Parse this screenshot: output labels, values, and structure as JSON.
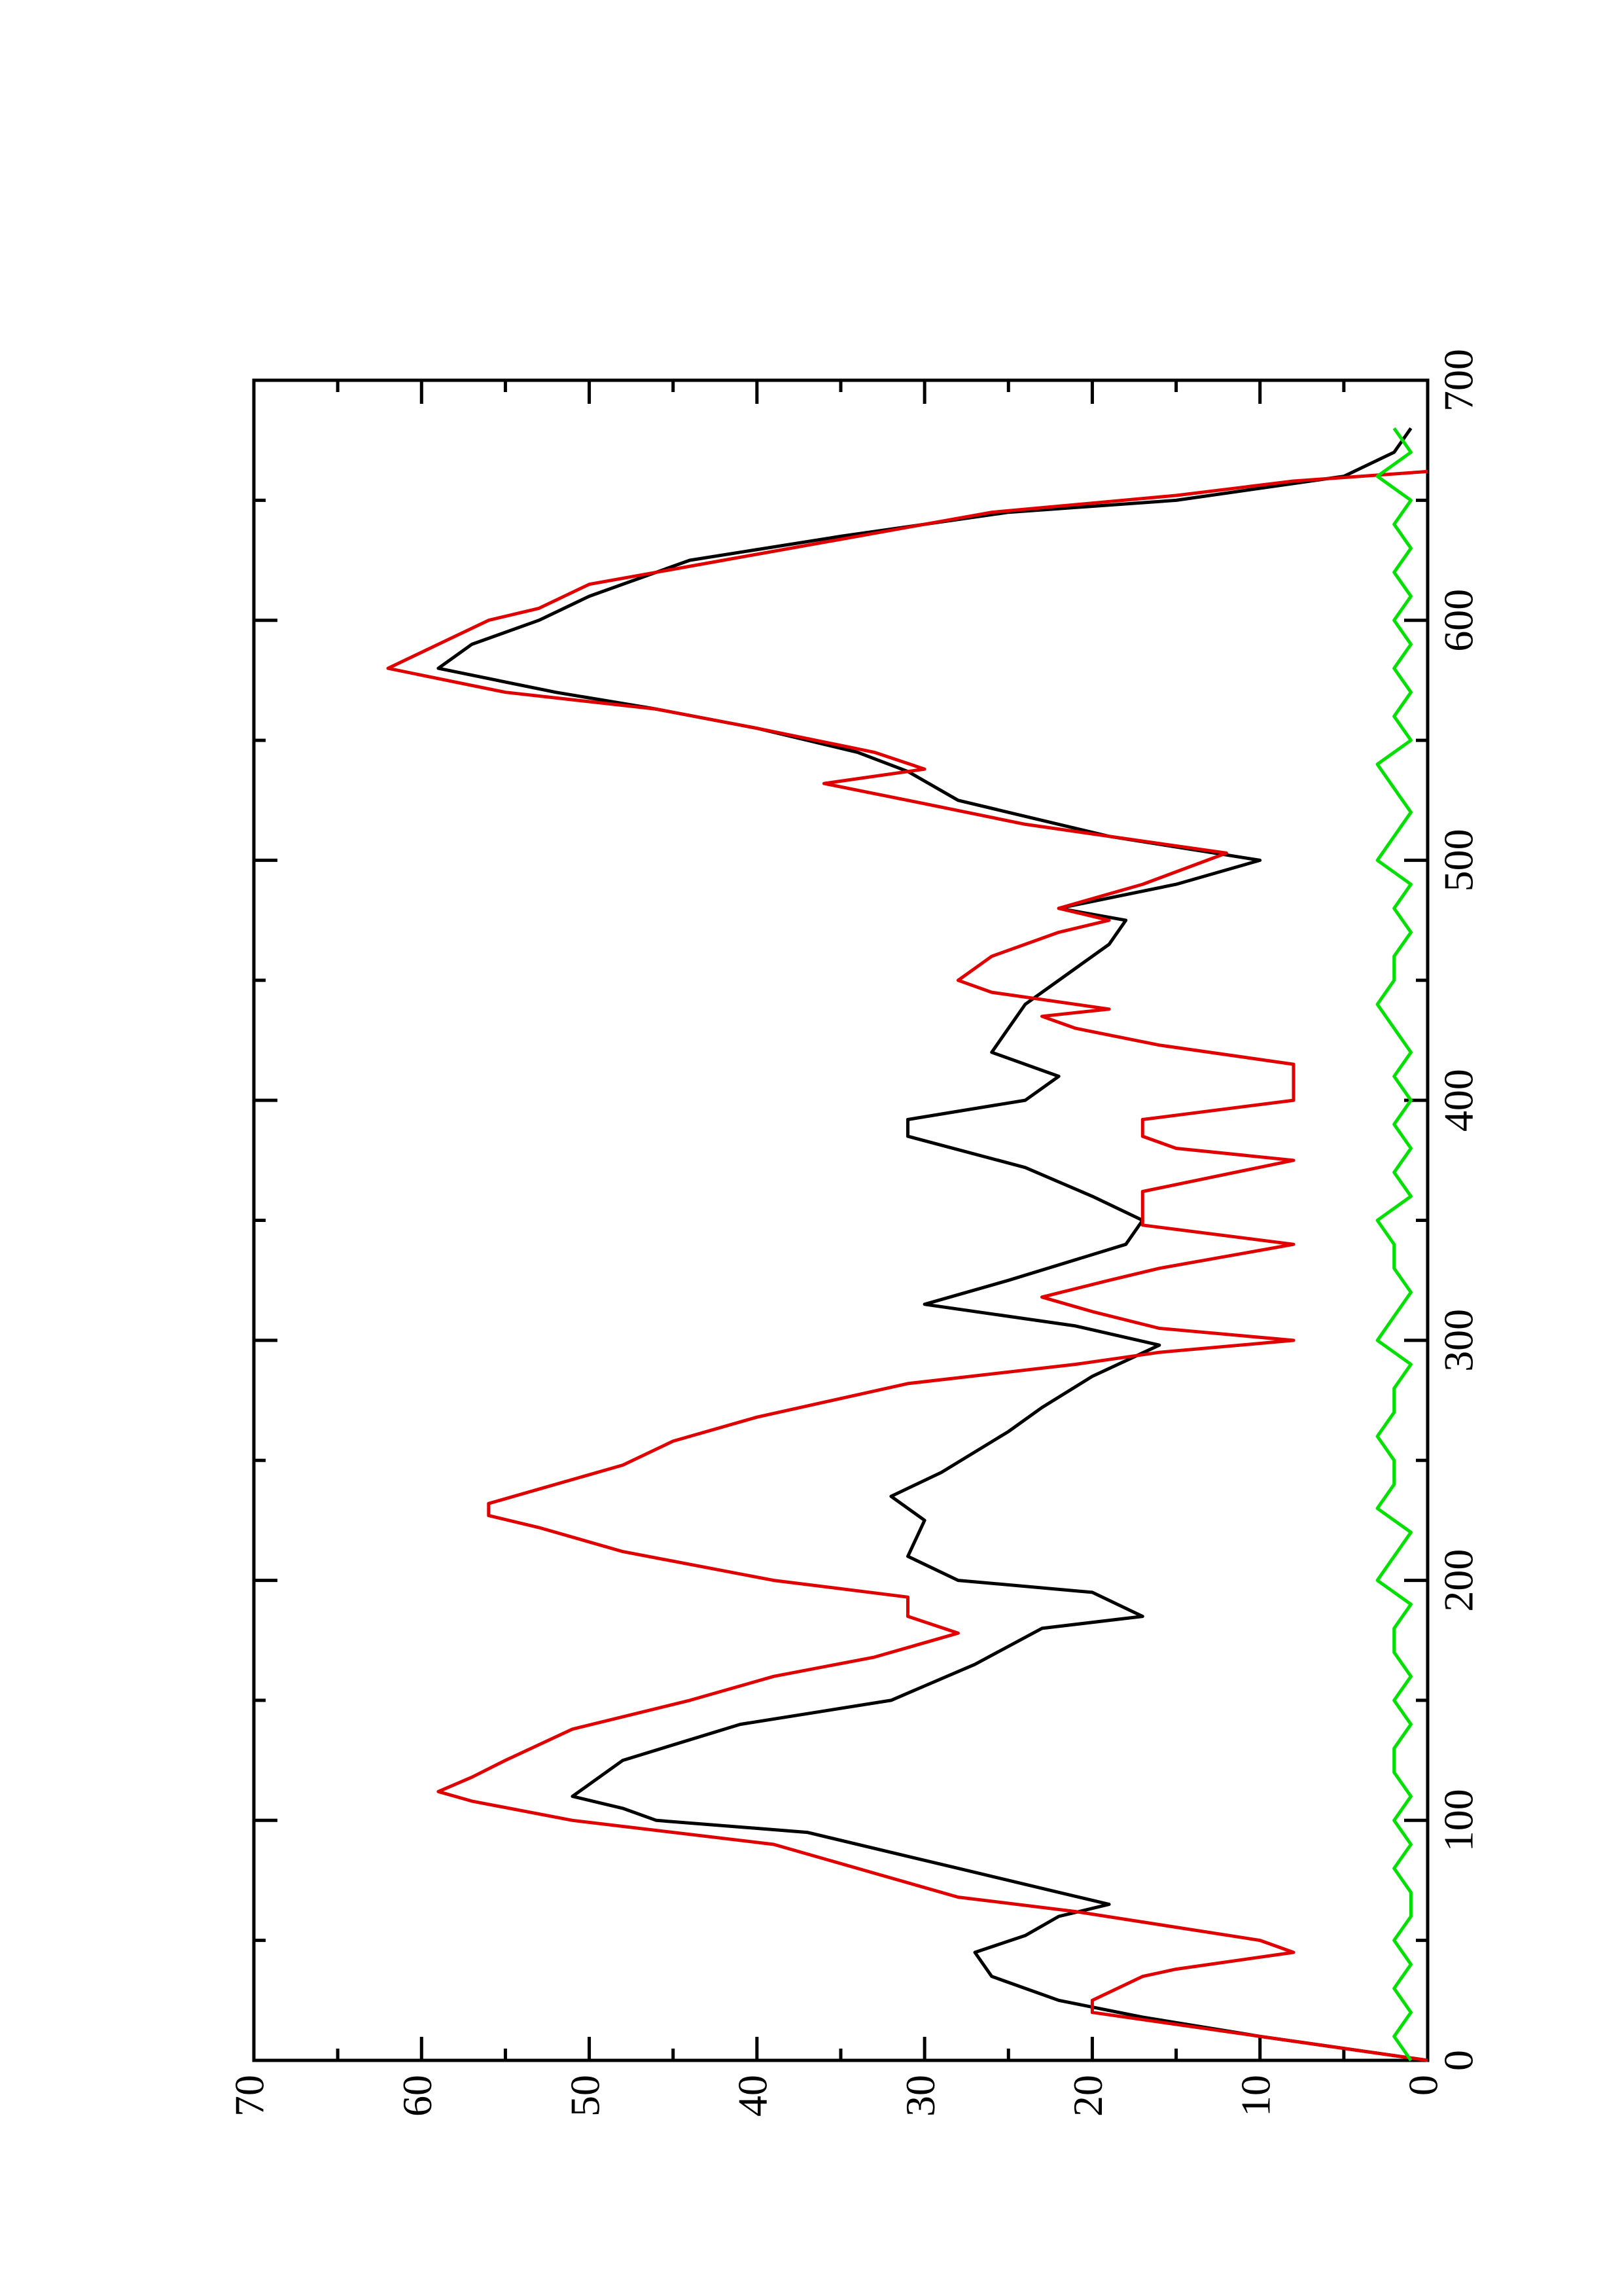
{
  "chart_data": {
    "type": "line",
    "xlim": [
      0,
      700
    ],
    "xticks": [
      0,
      100,
      200,
      300,
      400,
      500,
      600,
      700
    ],
    "xminorticks": [
      50,
      150,
      250,
      350,
      450,
      550,
      650
    ],
    "ylim": [
      0,
      70
    ],
    "yticks": [
      0,
      10,
      20,
      30,
      40,
      50,
      60,
      70
    ],
    "yminorticks": [
      5,
      15,
      25,
      35,
      45,
      55,
      65
    ],
    "rotation": -90,
    "grid": false,
    "series": [
      {
        "color": "#000000",
        "x": [
          0,
          10,
          18,
          25,
          35,
          45,
          52,
          60,
          65,
          70,
          80,
          95,
          100,
          105,
          110,
          125,
          140,
          150,
          165,
          180,
          185,
          195,
          200,
          210,
          225,
          235,
          245,
          262,
          272,
          285,
          298,
          306,
          315,
          325,
          340,
          350,
          360,
          372,
          385,
          392,
          400,
          410,
          420,
          430,
          440,
          450,
          465,
          475,
          480,
          490,
          500,
          510,
          525,
          537,
          545,
          555,
          563,
          570,
          580,
          590,
          600,
          610,
          625,
          635,
          645,
          650,
          660,
          670,
          680
        ],
        "values": [
          0,
          10,
          17,
          22,
          26,
          27,
          24,
          22,
          19,
          22,
          28,
          37,
          46,
          48,
          51,
          48,
          41,
          32,
          27,
          23,
          17,
          20,
          28,
          31,
          30,
          32,
          29,
          25,
          23,
          20,
          16,
          21,
          30,
          25,
          18,
          17,
          20,
          24,
          31,
          31,
          24,
          22,
          26,
          25,
          24,
          22,
          19,
          18,
          22,
          15,
          10,
          19,
          28,
          31,
          34,
          40,
          46,
          52,
          59,
          57,
          53,
          50,
          44,
          35,
          25,
          15,
          5,
          2,
          1
        ]
      },
      {
        "color": "#e00000",
        "x": [
          0,
          20,
          25,
          35,
          38,
          45,
          50,
          62,
          68,
          78,
          90,
          100,
          108,
          112,
          118,
          125,
          138,
          150,
          160,
          168,
          178,
          185,
          193,
          200,
          212,
          222,
          227,
          232,
          238,
          248,
          258,
          268,
          282,
          290,
          295,
          300,
          305,
          312,
          318,
          325,
          330,
          340,
          348,
          362,
          375,
          380,
          385,
          392,
          400,
          415,
          423,
          430,
          435,
          438,
          445,
          450,
          455,
          460,
          470,
          475,
          480,
          490,
          503,
          515,
          525,
          532,
          538,
          545,
          555,
          563,
          570,
          580,
          590,
          600,
          605,
          615,
          625,
          635,
          645,
          652,
          658,
          662
        ],
        "values": [
          0,
          20,
          20,
          17,
          15,
          8,
          10,
          21,
          28,
          33,
          39,
          51,
          57,
          59,
          57,
          55,
          51,
          44,
          39,
          33,
          28,
          31,
          31,
          39,
          48,
          53,
          56,
          56,
          53,
          48,
          45,
          40,
          31,
          21,
          16,
          8,
          16,
          20,
          23,
          19,
          16,
          8,
          17,
          17,
          8,
          15,
          17,
          17,
          8,
          8,
          16,
          21,
          23,
          19,
          26,
          28,
          27,
          26,
          22,
          19,
          22,
          17,
          12,
          24,
          31,
          36,
          30,
          33,
          40,
          46,
          55,
          62,
          59,
          56,
          53,
          50,
          42,
          34,
          26,
          15,
          8,
          0
        ]
      },
      {
        "color": "#00e000",
        "x": [
          0,
          10,
          20,
          30,
          40,
          50,
          60,
          70,
          80,
          90,
          100,
          110,
          120,
          130,
          140,
          150,
          160,
          170,
          180,
          190,
          200,
          210,
          220,
          230,
          240,
          250,
          260,
          270,
          280,
          290,
          300,
          310,
          320,
          330,
          340,
          350,
          360,
          370,
          380,
          390,
          400,
          410,
          420,
          430,
          440,
          450,
          460,
          470,
          480,
          490,
          500,
          510,
          520,
          530,
          540,
          550,
          560,
          570,
          580,
          590,
          600,
          610,
          620,
          630,
          640,
          650,
          660,
          670,
          680
        ],
        "values": [
          1,
          2,
          1,
          2,
          1,
          2,
          1,
          1,
          2,
          1,
          2,
          1,
          2,
          2,
          1,
          2,
          1,
          2,
          2,
          1,
          3,
          2,
          1,
          3,
          2,
          2,
          3,
          2,
          2,
          1,
          3,
          2,
          1,
          2,
          2,
          3,
          1,
          2,
          1,
          2,
          1,
          2,
          1,
          2,
          3,
          2,
          2,
          1,
          2,
          1,
          3,
          2,
          1,
          2,
          3,
          1,
          2,
          1,
          2,
          1,
          2,
          1,
          2,
          1,
          2,
          1,
          3,
          1,
          2
        ]
      }
    ]
  }
}
